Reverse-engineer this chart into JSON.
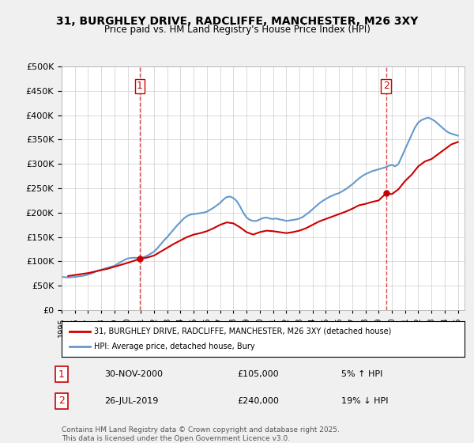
{
  "title": "31, BURGHLEY DRIVE, RADCLIFFE, MANCHESTER, M26 3XY",
  "subtitle": "Price paid vs. HM Land Registry's House Price Index (HPI)",
  "ylabel_ticks": [
    "£0",
    "£50K",
    "£100K",
    "£150K",
    "£200K",
    "£250K",
    "£300K",
    "£350K",
    "£400K",
    "£450K",
    "£500K"
  ],
  "ylim": [
    0,
    500000
  ],
  "yticks": [
    0,
    50000,
    100000,
    150000,
    200000,
    250000,
    300000,
    350000,
    400000,
    450000,
    500000
  ],
  "xlim_start": 1995.0,
  "xlim_end": 2025.5,
  "background_color": "#f0f0f0",
  "plot_bg_color": "#ffffff",
  "red_line_color": "#cc0000",
  "blue_line_color": "#6699cc",
  "point1_x": 2000.917,
  "point1_y": 105000,
  "point1_label": "1",
  "point1_date": "30-NOV-2000",
  "point1_price": "£105,000",
  "point1_pct": "5% ↑ HPI",
  "point2_x": 2019.567,
  "point2_y": 240000,
  "point2_label": "2",
  "point2_date": "26-JUL-2019",
  "point2_price": "£240,000",
  "point2_pct": "19% ↓ HPI",
  "legend_line1": "31, BURGHLEY DRIVE, RADCLIFFE, MANCHESTER, M26 3XY (detached house)",
  "legend_line2": "HPI: Average price, detached house, Bury",
  "footer1": "Contains HM Land Registry data © Crown copyright and database right 2025.",
  "footer2": "This data is licensed under the Open Government Licence v3.0.",
  "hpi_data_x": [
    1995.0,
    1995.25,
    1995.5,
    1995.75,
    1996.0,
    1996.25,
    1996.5,
    1996.75,
    1997.0,
    1997.25,
    1997.5,
    1997.75,
    1998.0,
    1998.25,
    1998.5,
    1998.75,
    1999.0,
    1999.25,
    1999.5,
    1999.75,
    2000.0,
    2000.25,
    2000.5,
    2000.75,
    2001.0,
    2001.25,
    2001.5,
    2001.75,
    2002.0,
    2002.25,
    2002.5,
    2002.75,
    2003.0,
    2003.25,
    2003.5,
    2003.75,
    2004.0,
    2004.25,
    2004.5,
    2004.75,
    2005.0,
    2005.25,
    2005.5,
    2005.75,
    2006.0,
    2006.25,
    2006.5,
    2006.75,
    2007.0,
    2007.25,
    2007.5,
    2007.75,
    2008.0,
    2008.25,
    2008.5,
    2008.75,
    2009.0,
    2009.25,
    2009.5,
    2009.75,
    2010.0,
    2010.25,
    2010.5,
    2010.75,
    2011.0,
    2011.25,
    2011.5,
    2011.75,
    2012.0,
    2012.25,
    2012.5,
    2012.75,
    2013.0,
    2013.25,
    2013.5,
    2013.75,
    2014.0,
    2014.25,
    2014.5,
    2014.75,
    2015.0,
    2015.25,
    2015.5,
    2015.75,
    2016.0,
    2016.25,
    2016.5,
    2016.75,
    2017.0,
    2017.25,
    2017.5,
    2017.75,
    2018.0,
    2018.25,
    2018.5,
    2018.75,
    2019.0,
    2019.25,
    2019.5,
    2019.75,
    2020.0,
    2020.25,
    2020.5,
    2020.75,
    2021.0,
    2021.25,
    2021.5,
    2021.75,
    2022.0,
    2022.25,
    2022.5,
    2022.75,
    2023.0,
    2023.25,
    2023.5,
    2023.75,
    2024.0,
    2024.25,
    2024.5,
    2024.75,
    2025.0
  ],
  "hpi_data_y": [
    68000,
    67500,
    67000,
    67500,
    68000,
    69000,
    70000,
    71000,
    73000,
    75000,
    78000,
    81000,
    83000,
    85000,
    87000,
    89000,
    91000,
    95000,
    99000,
    103000,
    106000,
    107000,
    107500,
    107000,
    107000,
    109000,
    112000,
    116000,
    120000,
    127000,
    135000,
    143000,
    150000,
    158000,
    166000,
    174000,
    181000,
    188000,
    193000,
    196000,
    197000,
    198000,
    199000,
    200000,
    202000,
    206000,
    210000,
    215000,
    220000,
    227000,
    232000,
    233000,
    230000,
    224000,
    213000,
    200000,
    190000,
    185000,
    183000,
    183000,
    186000,
    189000,
    190000,
    188000,
    187000,
    188000,
    186000,
    185000,
    183000,
    184000,
    185000,
    186000,
    188000,
    191000,
    196000,
    201000,
    207000,
    213000,
    219000,
    224000,
    228000,
    232000,
    235000,
    238000,
    240000,
    244000,
    248000,
    253000,
    258000,
    264000,
    270000,
    275000,
    279000,
    282000,
    285000,
    287000,
    289000,
    291000,
    293000,
    296000,
    298000,
    295000,
    300000,
    315000,
    330000,
    345000,
    360000,
    375000,
    385000,
    390000,
    393000,
    395000,
    392000,
    388000,
    382000,
    376000,
    370000,
    365000,
    362000,
    360000,
    358000
  ],
  "price_paid_x": [
    1995.5,
    1996.0,
    1996.5,
    1997.0,
    1997.5,
    1998.0,
    1998.5,
    1999.0,
    1999.5,
    2000.0,
    2000.917,
    2001.5,
    2002.0,
    2002.5,
    2003.0,
    2003.5,
    2004.0,
    2004.5,
    2005.0,
    2005.5,
    2006.0,
    2006.5,
    2007.0,
    2007.5,
    2008.0,
    2008.5,
    2009.0,
    2009.5,
    2010.0,
    2010.5,
    2011.0,
    2011.5,
    2012.0,
    2012.5,
    2013.0,
    2013.5,
    2014.0,
    2014.5,
    2015.0,
    2015.5,
    2016.0,
    2016.5,
    2017.0,
    2017.5,
    2018.0,
    2018.5,
    2019.0,
    2019.567,
    2020.0,
    2020.5,
    2021.0,
    2021.5,
    2022.0,
    2022.5,
    2023.0,
    2023.5,
    2024.0,
    2024.5,
    2025.0
  ],
  "price_paid_y": [
    70000,
    72000,
    74000,
    76000,
    79000,
    82000,
    85000,
    89000,
    93000,
    97000,
    105000,
    108000,
    112000,
    120000,
    128000,
    136000,
    143000,
    150000,
    155000,
    158000,
    162000,
    168000,
    175000,
    180000,
    178000,
    170000,
    160000,
    155000,
    160000,
    163000,
    162000,
    160000,
    158000,
    160000,
    163000,
    168000,
    175000,
    182000,
    187000,
    192000,
    197000,
    202000,
    208000,
    215000,
    218000,
    222000,
    225000,
    240000,
    238000,
    248000,
    265000,
    278000,
    295000,
    305000,
    310000,
    320000,
    330000,
    340000,
    345000
  ]
}
